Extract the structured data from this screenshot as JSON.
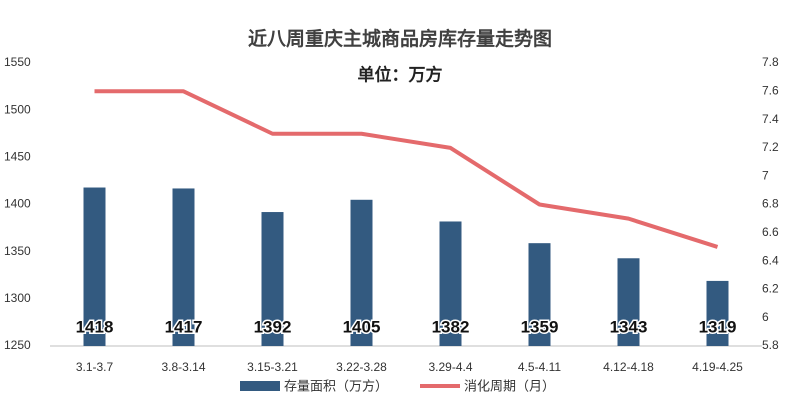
{
  "chart_data": {
    "type": "bar",
    "title": "近八周重庆主城商品房库存量走势图",
    "subtitle": "单位：万方",
    "categories": [
      "3.1-3.7",
      "3.8-3.14",
      "3.15-3.21",
      "3.22-3.28",
      "3.29-4.4",
      "4.5-4.11",
      "4.12-4.18",
      "4.19-4.25"
    ],
    "series": [
      {
        "name": "存量面积（万方）",
        "color": "#335a80",
        "type": "bar",
        "values": [
          1418,
          1417,
          1392,
          1405,
          1382,
          1359,
          1343,
          1319
        ]
      },
      {
        "name": "消化周期（月）",
        "color": "#e46a6c",
        "type": "line",
        "axis": "y2",
        "values": [
          7.6,
          7.6,
          7.3,
          7.3,
          7.2,
          6.8,
          6.7,
          6.5
        ]
      }
    ],
    "ylim": [
      1250,
      1550
    ],
    "yticks": [
      1250,
      1300,
      1350,
      1400,
      1450,
      1500,
      1550
    ],
    "y2lim": [
      5.8,
      7.8
    ],
    "y2ticks": [
      5.8,
      6,
      6.2,
      6.4,
      6.6,
      6.8,
      7,
      7.2,
      7.4,
      7.6,
      7.8
    ],
    "grid": false
  }
}
